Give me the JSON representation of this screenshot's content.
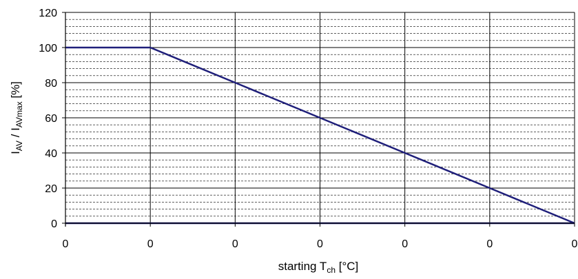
{
  "chart_data": {
    "type": "line",
    "title": "",
    "xlabel": {
      "main": "starting T",
      "sub": "ch",
      "unit": " [°C]"
    },
    "ylabel": {
      "p1": "I",
      "s1": "AV",
      "p2": " / I",
      "s2": "AVmax",
      "p3": " [%]"
    },
    "x_tick_labels": [
      "0",
      "0",
      "0",
      "0",
      "0",
      "0",
      "0"
    ],
    "y_ticks": [
      0,
      20,
      40,
      60,
      80,
      100,
      120
    ],
    "ylim": [
      0,
      120
    ],
    "y_minor_step": 4,
    "grid": true,
    "line_color": "#1f1f7a",
    "series": [
      {
        "x": [
          0,
          1,
          2,
          3,
          4,
          5,
          6
        ],
        "values": [
          100,
          100,
          80,
          60,
          40,
          20,
          0
        ]
      },
      {
        "x": [
          0,
          6
        ],
        "values": [
          0,
          0
        ]
      }
    ]
  }
}
